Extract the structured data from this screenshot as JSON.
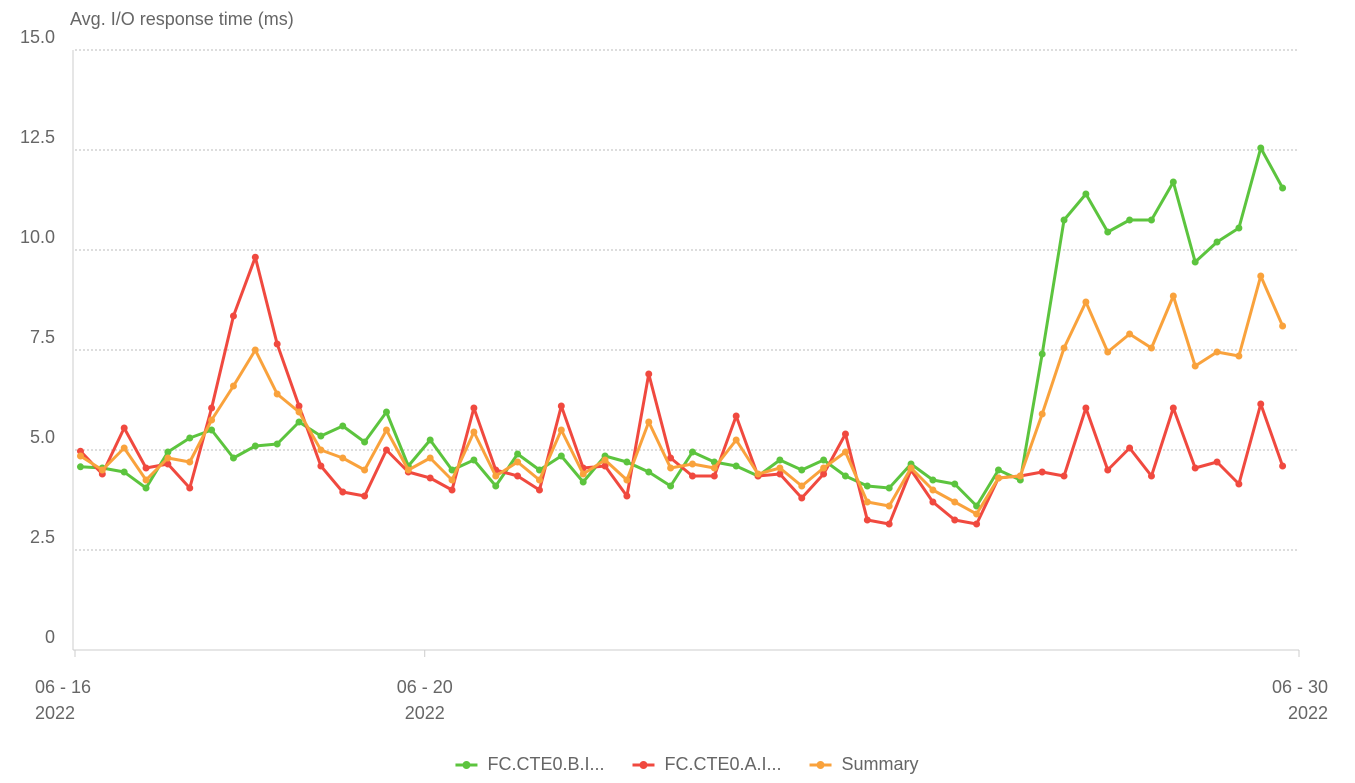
{
  "chart_data": {
    "type": "line",
    "y_axis_label": "Avg. I/O response time (ms)",
    "x": [
      0,
      1,
      2,
      3,
      4,
      5,
      6,
      7,
      8,
      9,
      10,
      11,
      12,
      13,
      14,
      15,
      16,
      17,
      18,
      19,
      20,
      21,
      22,
      23,
      24,
      25,
      26,
      27,
      28,
      29,
      30,
      31,
      32,
      33,
      34,
      35,
      36,
      37,
      38,
      39,
      40,
      41,
      42,
      43,
      44,
      45,
      46,
      47,
      48,
      49,
      50,
      51,
      52,
      53,
      54,
      55
    ],
    "xlim": [
      -0.25,
      55.75
    ],
    "xticks": [
      {
        "value": -0.25,
        "label": "06 - 16\n2022"
      },
      {
        "value": 15.75,
        "label": "06 - 20\n2022"
      },
      {
        "value": 55.75,
        "label": "06 - 30\n2022"
      }
    ],
    "ylim": [
      0,
      15
    ],
    "yticks": [
      0,
      2.5,
      {
        "value": 5,
        "label": "5.0"
      },
      7.5,
      {
        "value": 10,
        "label": "10.0"
      },
      12.5,
      {
        "value": 15,
        "label": "15.0"
      }
    ],
    "grid": true,
    "legend": "bottom",
    "series": [
      {
        "name": "FC.CTE0.B.I...",
        "color": "#5cc43e",
        "values": [
          4.58,
          4.55,
          4.45,
          4.05,
          4.95,
          5.3,
          5.5,
          4.8,
          5.1,
          5.15,
          5.7,
          5.35,
          5.6,
          5.2,
          5.95,
          4.6,
          5.25,
          4.5,
          4.75,
          4.1,
          4.9,
          4.5,
          4.85,
          4.2,
          4.85,
          4.7,
          4.45,
          4.1,
          4.95,
          4.7,
          4.6,
          4.35,
          4.75,
          4.5,
          4.75,
          4.35,
          4.1,
          4.05,
          4.65,
          4.25,
          4.15,
          3.6,
          4.5,
          4.25,
          7.4,
          10.75,
          11.4,
          10.45,
          10.75,
          10.75,
          11.7,
          9.7,
          10.2,
          10.55,
          12.55,
          11.55
        ]
      },
      {
        "name": "FC.CTE0.A.I...",
        "color": "#f0493f",
        "values": [
          4.97,
          4.4,
          5.55,
          4.55,
          4.65,
          4.05,
          6.05,
          8.35,
          9.82,
          7.65,
          6.1,
          4.6,
          3.95,
          3.85,
          5.0,
          4.45,
          4.3,
          4.0,
          6.05,
          4.5,
          4.35,
          4.0,
          6.1,
          4.55,
          4.6,
          3.85,
          6.9,
          4.8,
          4.35,
          4.35,
          5.85,
          4.35,
          4.4,
          3.8,
          4.4,
          5.4,
          3.25,
          3.15,
          4.5,
          3.7,
          3.25,
          3.15,
          4.3,
          4.35,
          4.45,
          4.35,
          6.05,
          4.5,
          5.05,
          4.35,
          6.05,
          4.55,
          4.7,
          4.15,
          6.15,
          4.6
        ]
      },
      {
        "name": "Summary",
        "color": "#f9a23c",
        "values": [
          4.85,
          4.5,
          5.05,
          4.25,
          4.8,
          4.7,
          5.75,
          6.6,
          7.5,
          6.4,
          5.95,
          5.0,
          4.8,
          4.5,
          5.5,
          4.5,
          4.8,
          4.25,
          5.45,
          4.35,
          4.7,
          4.25,
          5.5,
          4.4,
          4.75,
          4.25,
          5.7,
          4.55,
          4.65,
          4.55,
          5.25,
          4.4,
          4.55,
          4.1,
          4.55,
          4.95,
          3.7,
          3.6,
          4.55,
          4.0,
          3.7,
          3.4,
          4.3,
          4.35,
          5.9,
          7.55,
          8.7,
          7.45,
          7.9,
          7.55,
          8.85,
          7.1,
          7.45,
          7.35,
          9.35,
          8.1
        ]
      }
    ]
  }
}
